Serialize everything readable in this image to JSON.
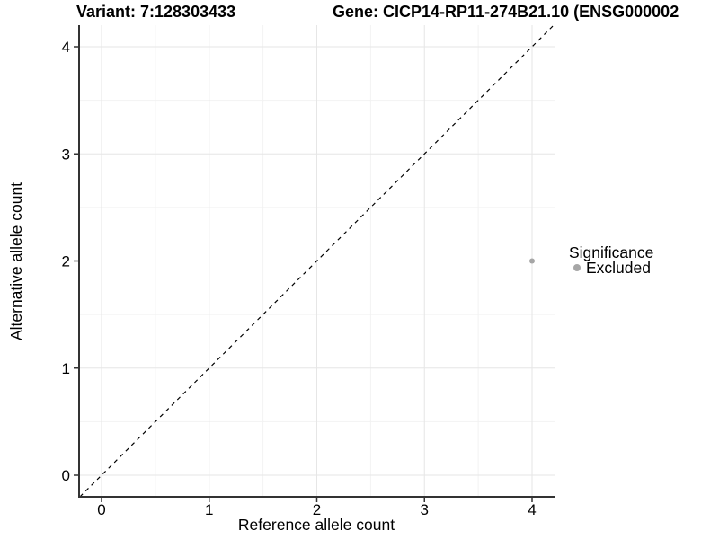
{
  "chart_data": {
    "type": "scatter",
    "title_left": "Variant: 7:128303433",
    "title_right": "Gene: CICP14-RP11-274B21.10 (ENSG000002",
    "xlabel": "Reference allele count",
    "ylabel": "Alternative allele count",
    "x_ticks": [
      0,
      1,
      2,
      3,
      4
    ],
    "y_ticks": [
      0,
      1,
      2,
      3,
      4
    ],
    "x_minor_ticks": [
      0.5,
      1.5,
      2.5,
      3.5
    ],
    "y_minor_ticks": [
      0.5,
      1.5,
      2.5,
      3.5
    ],
    "xlim": [
      -0.21,
      4.22
    ],
    "ylim": [
      -0.2,
      4.21
    ],
    "grid": true,
    "legend_position": "right",
    "points": [
      {
        "x": 4,
        "y": 2,
        "series": "Excluded"
      }
    ],
    "reference_line": {
      "type": "identity",
      "style": "dashed",
      "x1": -0.2013,
      "y1": -0.2013,
      "x2": 4.2012,
      "y2": 4.2012
    },
    "legend": {
      "title": "Significance",
      "entries": [
        {
          "label": "Excluded",
          "color": "#a6a6a6"
        }
      ]
    },
    "colors": {
      "point": "#a6a6a6",
      "grid_major": "#e6e6e6",
      "grid_minor": "#f2f2f2",
      "axis": "#333333",
      "reference_line": "#000000",
      "background": "#ffffff"
    }
  }
}
